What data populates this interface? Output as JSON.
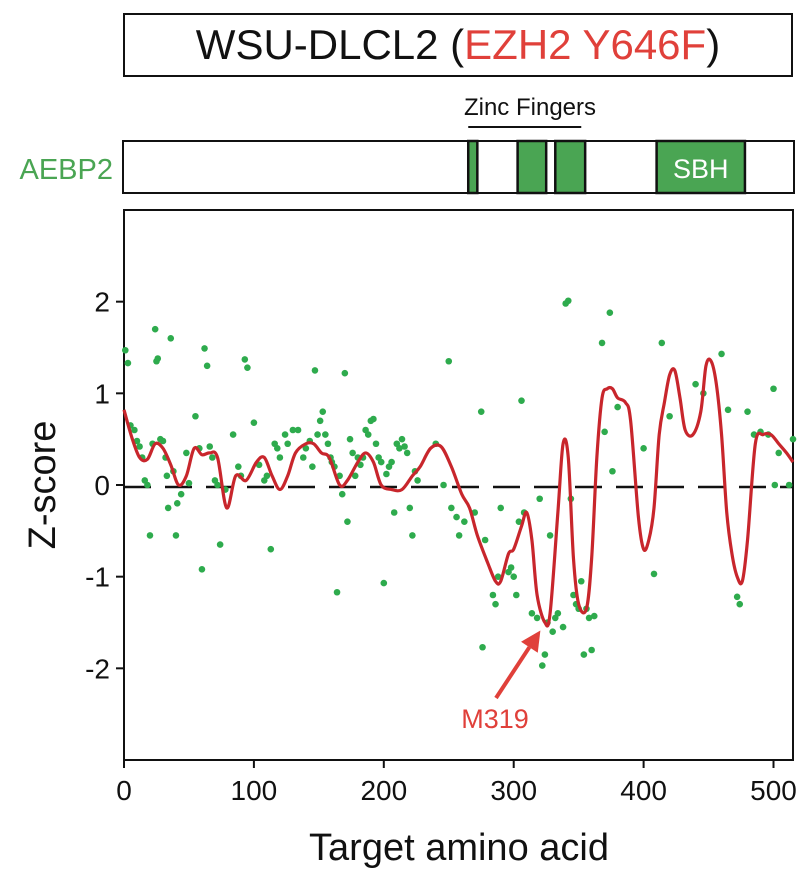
{
  "title": {
    "cell_line": "WSU-DLCL2",
    "open_paren": " (",
    "mutation": "EZH2 Y646F",
    "close_paren": ")"
  },
  "domain_track": {
    "protein": "AEBP2",
    "zinc_fingers_label": "Zinc Fingers",
    "sbh_label": "SBH",
    "domain_color": "#4aa553",
    "protein_color": "#4aa553",
    "domains": [
      {
        "name": "ZF1",
        "start": 265,
        "end": 272
      },
      {
        "name": "ZF2",
        "start": 303,
        "end": 325
      },
      {
        "name": "ZF3",
        "start": 332,
        "end": 355
      },
      {
        "name": "SBH",
        "start": 410,
        "end": 478,
        "label": "SBH"
      }
    ],
    "zinc_fingers_span": [
      265,
      352
    ]
  },
  "chart_data": {
    "type": "scatter",
    "xlabel": "Target amino acid",
    "ylabel": "Z-score",
    "xlim": [
      0,
      515
    ],
    "ylim": [
      -3.0,
      3.0
    ],
    "xticks": [
      0,
      100,
      200,
      300,
      400,
      500
    ],
    "yticks": [
      -2,
      -1,
      0,
      1,
      2
    ],
    "point_color": "#2eab4d",
    "line_color": "#c8262c",
    "annotation": {
      "text": "M319",
      "x": 319,
      "y": -1.5,
      "color": "#e0403a"
    },
    "smoothed_series": {
      "name": "smoothed",
      "points": [
        [
          0,
          0.82
        ],
        [
          6,
          0.52
        ],
        [
          12,
          0.3
        ],
        [
          18,
          0.28
        ],
        [
          24,
          0.45
        ],
        [
          30,
          0.4
        ],
        [
          36,
          0.22
        ],
        [
          42,
          0.0
        ],
        [
          48,
          0.1
        ],
        [
          54,
          0.4
        ],
        [
          60,
          0.33
        ],
        [
          66,
          0.35
        ],
        [
          72,
          0.3
        ],
        [
          79,
          -0.25
        ],
        [
          86,
          0.1
        ],
        [
          94,
          0.05
        ],
        [
          102,
          0.25
        ],
        [
          108,
          0.3
        ],
        [
          114,
          0.1
        ],
        [
          120,
          -0.05
        ],
        [
          126,
          0.1
        ],
        [
          132,
          0.35
        ],
        [
          140,
          0.45
        ],
        [
          146,
          0.45
        ],
        [
          152,
          0.35
        ],
        [
          158,
          0.3
        ],
        [
          166,
          0.0
        ],
        [
          172,
          0.05
        ],
        [
          180,
          0.25
        ],
        [
          186,
          0.35
        ],
        [
          192,
          0.25
        ],
        [
          198,
          0.0
        ],
        [
          206,
          -0.05
        ],
        [
          214,
          -0.05
        ],
        [
          222,
          0.1
        ],
        [
          228,
          0.2
        ],
        [
          236,
          0.4
        ],
        [
          244,
          0.42
        ],
        [
          252,
          0.2
        ],
        [
          260,
          -0.1
        ],
        [
          266,
          -0.25
        ],
        [
          272,
          -0.55
        ],
        [
          280,
          -0.85
        ],
        [
          286,
          -1.05
        ],
        [
          290,
          -1.05
        ],
        [
          296,
          -0.75
        ],
        [
          300,
          -0.7
        ],
        [
          306,
          -0.45
        ],
        [
          310,
          -0.3
        ],
        [
          314,
          -0.6
        ],
        [
          318,
          -1.2
        ],
        [
          324,
          -1.5
        ],
        [
          328,
          -1.4
        ],
        [
          334,
          -0.3
        ],
        [
          338,
          0.45
        ],
        [
          342,
          0.3
        ],
        [
          346,
          -0.8
        ],
        [
          350,
          -1.3
        ],
        [
          356,
          -1.35
        ],
        [
          360,
          -0.8
        ],
        [
          364,
          0.3
        ],
        [
          368,
          0.95
        ],
        [
          372,
          1.05
        ],
        [
          376,
          1.05
        ],
        [
          380,
          0.95
        ],
        [
          386,
          0.9
        ],
        [
          390,
          0.7
        ],
        [
          396,
          -0.35
        ],
        [
          400,
          -0.7
        ],
        [
          404,
          -0.6
        ],
        [
          408,
          -0.25
        ],
        [
          412,
          0.55
        ],
        [
          416,
          0.9
        ],
        [
          420,
          1.2
        ],
        [
          424,
          1.25
        ],
        [
          428,
          0.95
        ],
        [
          432,
          0.6
        ],
        [
          438,
          0.55
        ],
        [
          444,
          0.8
        ],
        [
          448,
          1.3
        ],
        [
          452,
          1.35
        ],
        [
          456,
          1.1
        ],
        [
          460,
          0.55
        ],
        [
          464,
          -0.3
        ],
        [
          468,
          -0.75
        ],
        [
          472,
          -1.0
        ],
        [
          476,
          -1.05
        ],
        [
          480,
          -0.6
        ],
        [
          486,
          0.45
        ],
        [
          492,
          0.55
        ],
        [
          498,
          0.55
        ],
        [
          504,
          0.45
        ],
        [
          510,
          0.35
        ],
        [
          515,
          0.25
        ]
      ]
    },
    "scatter_points": [
      [
        1,
        1.47
      ],
      [
        3,
        1.33
      ],
      [
        5,
        0.65
      ],
      [
        8,
        0.6
      ],
      [
        10,
        0.48
      ],
      [
        12,
        0.42
      ],
      [
        14,
        0.3
      ],
      [
        16,
        0.05
      ],
      [
        18,
        0.0
      ],
      [
        20,
        -0.55
      ],
      [
        22,
        0.45
      ],
      [
        24,
        1.7
      ],
      [
        25,
        1.35
      ],
      [
        26,
        1.38
      ],
      [
        28,
        0.5
      ],
      [
        30,
        0.48
      ],
      [
        32,
        0.3
      ],
      [
        33,
        0.1
      ],
      [
        34,
        -0.25
      ],
      [
        36,
        1.6
      ],
      [
        38,
        0.15
      ],
      [
        40,
        -0.55
      ],
      [
        41,
        -0.2
      ],
      [
        44,
        -0.1
      ],
      [
        48,
        0.35
      ],
      [
        50,
        0.02
      ],
      [
        55,
        0.75
      ],
      [
        58,
        0.4
      ],
      [
        60,
        -0.92
      ],
      [
        62,
        1.49
      ],
      [
        64,
        1.3
      ],
      [
        66,
        0.42
      ],
      [
        68,
        0.3
      ],
      [
        70,
        0.05
      ],
      [
        72,
        0.0
      ],
      [
        74,
        -0.65
      ],
      [
        78,
        -0.05
      ],
      [
        84,
        0.55
      ],
      [
        88,
        0.2
      ],
      [
        90,
        0.1
      ],
      [
        93,
        1.37
      ],
      [
        95,
        1.28
      ],
      [
        100,
        0.68
      ],
      [
        104,
        0.22
      ],
      [
        108,
        0.05
      ],
      [
        110,
        0.1
      ],
      [
        113,
        -0.7
      ],
      [
        116,
        0.45
      ],
      [
        118,
        0.4
      ],
      [
        120,
        0.3
      ],
      [
        124,
        0.55
      ],
      [
        126,
        0.45
      ],
      [
        130,
        0.6
      ],
      [
        134,
        0.6
      ],
      [
        138,
        0.3
      ],
      [
        140,
        0.4
      ],
      [
        143,
        0.48
      ],
      [
        145,
        0.2
      ],
      [
        147,
        1.25
      ],
      [
        149,
        0.55
      ],
      [
        151,
        0.7
      ],
      [
        153,
        0.8
      ],
      [
        155,
        0.55
      ],
      [
        157,
        0.45
      ],
      [
        159,
        0.3
      ],
      [
        160,
        0.25
      ],
      [
        162,
        0.2
      ],
      [
        164,
        -1.17
      ],
      [
        166,
        0.1
      ],
      [
        168,
        -0.1
      ],
      [
        170,
        1.22
      ],
      [
        172,
        -0.4
      ],
      [
        174,
        0.5
      ],
      [
        176,
        0.35
      ],
      [
        178,
        0.1
      ],
      [
        180,
        0.3
      ],
      [
        182,
        0.22
      ],
      [
        184,
        0.3
      ],
      [
        186,
        0.6
      ],
      [
        188,
        0.55
      ],
      [
        190,
        0.7
      ],
      [
        192,
        0.72
      ],
      [
        194,
        0.45
      ],
      [
        196,
        0.3
      ],
      [
        198,
        0.25
      ],
      [
        200,
        -1.07
      ],
      [
        202,
        0.12
      ],
      [
        204,
        0.2
      ],
      [
        206,
        0.25
      ],
      [
        208,
        -0.3
      ],
      [
        210,
        0.45
      ],
      [
        212,
        0.4
      ],
      [
        214,
        0.5
      ],
      [
        216,
        0.42
      ],
      [
        218,
        0.35
      ],
      [
        220,
        -0.25
      ],
      [
        222,
        -0.55
      ],
      [
        224,
        0.15
      ],
      [
        226,
        0.05
      ],
      [
        240,
        0.45
      ],
      [
        246,
        0.0
      ],
      [
        250,
        1.35
      ],
      [
        252,
        -0.25
      ],
      [
        256,
        -0.35
      ],
      [
        258,
        -0.55
      ],
      [
        262,
        -0.4
      ],
      [
        270,
        -0.3
      ],
      [
        275,
        0.8
      ],
      [
        276,
        -1.77
      ],
      [
        278,
        -0.6
      ],
      [
        284,
        -1.2
      ],
      [
        286,
        -1.3
      ],
      [
        288,
        -1.0
      ],
      [
        290,
        -0.25
      ],
      [
        296,
        -0.95
      ],
      [
        298,
        -0.9
      ],
      [
        300,
        -1.0
      ],
      [
        302,
        -1.2
      ],
      [
        304,
        -0.4
      ],
      [
        306,
        0.92
      ],
      [
        308,
        -0.3
      ],
      [
        314,
        -1.4
      ],
      [
        318,
        -1.45
      ],
      [
        320,
        -0.15
      ],
      [
        322,
        -1.97
      ],
      [
        324,
        -1.85
      ],
      [
        326,
        -1.5
      ],
      [
        328,
        -0.55
      ],
      [
        330,
        -1.6
      ],
      [
        332,
        -1.45
      ],
      [
        334,
        -1.4
      ],
      [
        338,
        -1.55
      ],
      [
        340,
        1.98
      ],
      [
        342,
        2.01
      ],
      [
        344,
        -0.15
      ],
      [
        346,
        -1.2
      ],
      [
        348,
        -1.3
      ],
      [
        350,
        -1.35
      ],
      [
        352,
        -1.05
      ],
      [
        354,
        -1.85
      ],
      [
        356,
        -1.35
      ],
      [
        358,
        -1.45
      ],
      [
        360,
        -1.8
      ],
      [
        362,
        -1.43
      ],
      [
        368,
        1.55
      ],
      [
        370,
        0.58
      ],
      [
        374,
        1.88
      ],
      [
        376,
        0.15
      ],
      [
        380,
        0.85
      ],
      [
        400,
        0.4
      ],
      [
        408,
        -0.97
      ],
      [
        414,
        1.55
      ],
      [
        420,
        0.75
      ],
      [
        440,
        1.1
      ],
      [
        446,
        1.0
      ],
      [
        460,
        1.43
      ],
      [
        465,
        0.82
      ],
      [
        472,
        -1.22
      ],
      [
        474,
        -1.3
      ],
      [
        480,
        0.8
      ],
      [
        485,
        0.55
      ],
      [
        490,
        0.58
      ],
      [
        496,
        0.55
      ],
      [
        500,
        1.05
      ],
      [
        501,
        0.0
      ],
      [
        504,
        0.35
      ],
      [
        512,
        0.0
      ],
      [
        515,
        0.5
      ]
    ]
  }
}
